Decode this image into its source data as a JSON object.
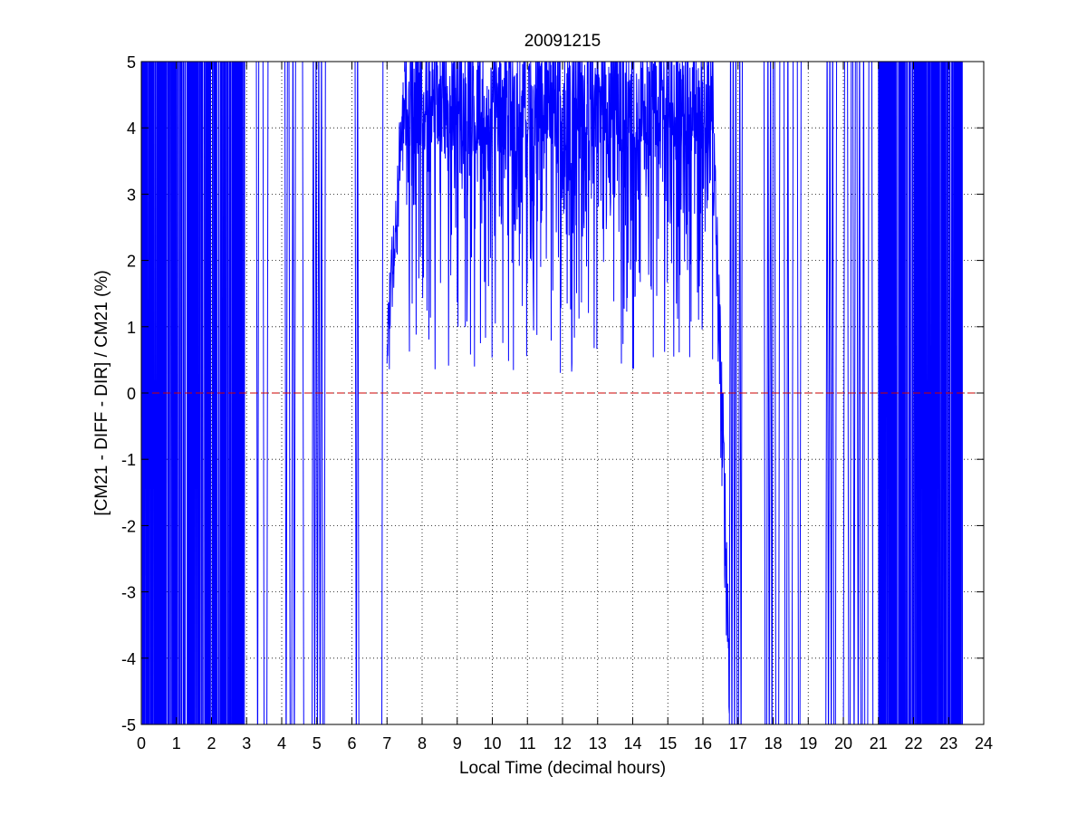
{
  "chart_data": {
    "type": "line",
    "title": "20091215",
    "xlabel": "Local Time (decimal hours)",
    "ylabel": "[CM21 - DIFF - DIR] / CM21 (%)",
    "xlim": [
      0,
      24
    ],
    "ylim": [
      -5,
      5
    ],
    "xticks": [
      "0",
      "1",
      "2",
      "3",
      "4",
      "5",
      "6",
      "7",
      "8",
      "9",
      "10",
      "11",
      "12",
      "13",
      "14",
      "15",
      "16",
      "17",
      "18",
      "19",
      "20",
      "21",
      "22",
      "23",
      "24"
    ],
    "yticks": [
      "-5",
      "-4",
      "-3",
      "-2",
      "-1",
      "0",
      "1",
      "2",
      "3",
      "4",
      "5"
    ],
    "grid": true,
    "series_color": "#0000ff",
    "reference_line": {
      "y": 0,
      "color": "#cc0000",
      "style": "dashed"
    },
    "series": [
      {
        "values_note_free": true,
        "segments": [
          {
            "x0": 0.0,
            "x1": 2.95,
            "pattern": "noise",
            "ymin": -5,
            "ymax": 5
          },
          {
            "x0": 3.2,
            "x1": 3.65,
            "pattern": "sparse",
            "ymin": -5,
            "ymax": 5
          },
          {
            "x0": 4.05,
            "x1": 5.25,
            "pattern": "sparse",
            "ymin": -5,
            "ymax": 5
          },
          {
            "x0": 6.05,
            "x1": 6.2,
            "pattern": "sparse",
            "ymin": -5,
            "ymax": 5
          },
          {
            "x0": 6.85,
            "x1": 7.0,
            "pattern": "sparse",
            "ymin": -4.5,
            "ymax": 1.8
          },
          {
            "x0": 7.0,
            "x1": 7.5,
            "pattern": "rise",
            "ymin": 0.5,
            "ymax": 4.5
          },
          {
            "x0": 7.5,
            "x1": 16.3,
            "pattern": "day",
            "ymin": 0.3,
            "ymax": 5
          },
          {
            "x0": 16.3,
            "x1": 16.75,
            "pattern": "fall",
            "ymin": -4,
            "ymax": 3.6
          },
          {
            "x0": 16.75,
            "x1": 17.2,
            "pattern": "sparse",
            "ymin": -5,
            "ymax": 5
          },
          {
            "x0": 17.7,
            "x1": 18.8,
            "pattern": "sparse",
            "ymin": -5,
            "ymax": 5
          },
          {
            "x0": 19.5,
            "x1": 19.85,
            "pattern": "sparse",
            "ymin": -5,
            "ymax": 5
          },
          {
            "x0": 20.0,
            "x1": 21.0,
            "pattern": "sparse",
            "ymin": -5,
            "ymax": 5
          },
          {
            "x0": 21.0,
            "x1": 23.4,
            "pattern": "noise",
            "ymin": -5,
            "ymax": 5
          }
        ]
      }
    ]
  }
}
